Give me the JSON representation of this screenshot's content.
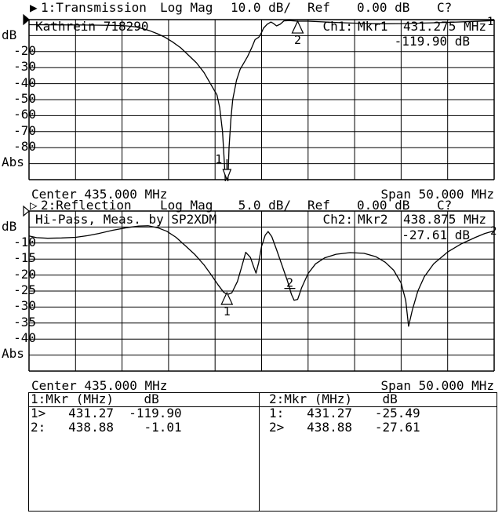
{
  "colors": {
    "fg": "#000000",
    "bg": "#ffffff"
  },
  "channel1": {
    "header": {
      "pointer_icon": "▶",
      "label": "1:Transmission",
      "format": "Log Mag",
      "scale": "10.0 dB/",
      "ref_label": "Ref",
      "ref_value": "0.00 dB",
      "status": "C?"
    },
    "title": "Kathrein 718290",
    "readout": {
      "ch_label": "Ch1:",
      "mkr_label": "Mkr1",
      "freq": "431.275 MHz",
      "value": "-119.90 dB"
    },
    "trace_number": "1",
    "axis": {
      "unit": "dB",
      "labels": [
        "-20",
        "-30",
        "-40",
        "-50",
        "-60",
        "-70",
        "-80"
      ],
      "bottom_label": "Abs"
    },
    "footer": {
      "center": "Center 435.000 MHz",
      "span": "Span 50.000 MHz"
    }
  },
  "channel2": {
    "header": {
      "pointer_icon": "▷",
      "label": "2:Reflection",
      "format": "Log Mag",
      "scale": "5.0 dB/",
      "ref_label": "Ref",
      "ref_value": "0.00 dB",
      "status": "C?"
    },
    "title": "Hi-Pass, Meas. by SP2XDM",
    "readout": {
      "ch_label": "Ch2:",
      "mkr_label": "Mkr2",
      "freq": "438.875 MHz",
      "value": "-27.61 dB"
    },
    "trace_number": "2",
    "axis": {
      "unit": "dB",
      "labels": [
        "-10",
        "-15",
        "-20",
        "-25",
        "-30",
        "-35",
        "-40"
      ],
      "bottom_label": "Abs"
    },
    "footer": {
      "center": "Center 435.000 MHz",
      "span": "Span 50.000 MHz"
    }
  },
  "marker_table": {
    "left": {
      "header_col1": "1:Mkr (MHz)",
      "header_col2": "dB",
      "rows": [
        {
          "tag": "1>",
          "freq": "431.27",
          "db": "-119.90"
        },
        {
          "tag": "2:",
          "freq": "438.88",
          "db": "-1.01"
        }
      ]
    },
    "right": {
      "header_col1": "2:Mkr (MHz)",
      "header_col2": "dB",
      "rows": [
        {
          "tag": "1:",
          "freq": "431.27",
          "db": "-25.49"
        },
        {
          "tag": "2>",
          "freq": "438.88",
          "db": "-27.61"
        }
      ]
    }
  },
  "chart_data": [
    {
      "type": "line",
      "title": "1:Transmission",
      "format": "Log Mag",
      "scale_db_per_div": 10,
      "ref_db": 0,
      "x_center_mhz": 435.0,
      "x_span_mhz": 50.0,
      "x_range_mhz": [
        410,
        460
      ],
      "y_range_db": [
        -100,
        0
      ],
      "grid": {
        "cols": 10,
        "rows": 10
      },
      "points_mhz_db": [
        [
          410,
          -3.2
        ],
        [
          413,
          -3.3
        ],
        [
          416,
          -3.4
        ],
        [
          419,
          -3.6
        ],
        [
          420.5,
          -3.9
        ],
        [
          421.5,
          -4.6
        ],
        [
          422.3,
          -5.8
        ],
        [
          423,
          -7
        ],
        [
          423.8,
          -8.8
        ],
        [
          424.6,
          -11
        ],
        [
          425.4,
          -13.8
        ],
        [
          426.3,
          -17.6
        ],
        [
          427.1,
          -22
        ],
        [
          428,
          -27
        ],
        [
          428.8,
          -33
        ],
        [
          429.4,
          -39
        ],
        [
          429.9,
          -44
        ],
        [
          430.2,
          -47
        ],
        [
          430.5,
          -55
        ],
        [
          430.8,
          -70
        ],
        [
          431,
          -90
        ],
        [
          431.275,
          -119.9
        ],
        [
          431.5,
          -80
        ],
        [
          431.7,
          -62
        ],
        [
          431.9,
          -50
        ],
        [
          432.3,
          -38
        ],
        [
          432.7,
          -31
        ],
        [
          433.1,
          -27
        ],
        [
          433.5,
          -23
        ],
        [
          433.9,
          -18
        ],
        [
          434.3,
          -12.5
        ],
        [
          434.7,
          -11
        ],
        [
          435,
          -8
        ],
        [
          435.2,
          -5.4
        ],
        [
          435.6,
          -2.9
        ],
        [
          436,
          -1.5
        ],
        [
          436.3,
          -2.5
        ],
        [
          436.6,
          -3.9
        ],
        [
          437,
          -2.9
        ],
        [
          437.4,
          -0.8
        ],
        [
          438,
          -0.6
        ],
        [
          438.875,
          -1.0
        ],
        [
          440,
          -1.0
        ],
        [
          442,
          -1.5
        ],
        [
          444,
          -2.0
        ],
        [
          446,
          -2.4
        ],
        [
          448,
          -2.6
        ],
        [
          450,
          -2.5
        ],
        [
          452,
          -2.2
        ],
        [
          454,
          -1.9
        ],
        [
          456,
          -1.5
        ],
        [
          458,
          -1.1
        ],
        [
          460,
          -0.6
        ]
      ],
      "markers": [
        {
          "n": "1",
          "f_mhz": 431.275,
          "db": -119.9,
          "style": "below-scale-arrow"
        },
        {
          "n": "2",
          "f_mhz": 438.875,
          "db": -1.01,
          "style": "triangle-up"
        }
      ]
    },
    {
      "type": "line",
      "title": "2:Reflection",
      "format": "Log Mag",
      "scale_db_per_div": 5,
      "ref_db": 0,
      "x_center_mhz": 435.0,
      "x_span_mhz": 50.0,
      "x_range_mhz": [
        410,
        460
      ],
      "y_range_db": [
        -50,
        0
      ],
      "grid": {
        "cols": 10,
        "rows": 10
      },
      "points_mhz_db": [
        [
          410,
          -7.8
        ],
        [
          410.8,
          -8.3
        ],
        [
          412,
          -8.5
        ],
        [
          413.5,
          -8.4
        ],
        [
          415,
          -8.2
        ],
        [
          416.3,
          -7.7
        ],
        [
          417.5,
          -7
        ],
        [
          419,
          -6
        ],
        [
          420.5,
          -5.2
        ],
        [
          421.8,
          -4.7
        ],
        [
          422.8,
          -4.6
        ],
        [
          423.8,
          -5.2
        ],
        [
          424.8,
          -6.3
        ],
        [
          425.8,
          -8.2
        ],
        [
          426.8,
          -10.8
        ],
        [
          427.8,
          -13.5
        ],
        [
          428.8,
          -16.8
        ],
        [
          429.6,
          -20
        ],
        [
          430.3,
          -23
        ],
        [
          430.9,
          -25.3
        ],
        [
          431.3,
          -26.1
        ],
        [
          431.8,
          -25.6
        ],
        [
          432.4,
          -22
        ],
        [
          432.9,
          -17
        ],
        [
          433.3,
          -12.9
        ],
        [
          433.8,
          -14.5
        ],
        [
          434.1,
          -17
        ],
        [
          434.4,
          -19.4
        ],
        [
          434.7,
          -16
        ],
        [
          435,
          -11
        ],
        [
          435.4,
          -7.5
        ],
        [
          435.7,
          -6.4
        ],
        [
          436.1,
          -8
        ],
        [
          436.6,
          -12
        ],
        [
          437.2,
          -17
        ],
        [
          437.8,
          -22
        ],
        [
          438.2,
          -26
        ],
        [
          438.5,
          -27.9
        ],
        [
          438.875,
          -27.6
        ],
        [
          439.3,
          -24
        ],
        [
          440,
          -19.5
        ],
        [
          440.8,
          -16.5
        ],
        [
          441.8,
          -14.6
        ],
        [
          443,
          -13.5
        ],
        [
          444.5,
          -13
        ],
        [
          446,
          -13.2
        ],
        [
          447.3,
          -14.3
        ],
        [
          448.3,
          -16
        ],
        [
          449.2,
          -18.5
        ],
        [
          450,
          -22.5
        ],
        [
          450.5,
          -28
        ],
        [
          450.8,
          -36
        ],
        [
          451.2,
          -31
        ],
        [
          451.8,
          -25
        ],
        [
          452.5,
          -20.5
        ],
        [
          453.5,
          -16.5
        ],
        [
          455,
          -12.8
        ],
        [
          456.5,
          -10.2
        ],
        [
          458,
          -8.2
        ],
        [
          459,
          -7
        ],
        [
          460,
          -6.2
        ]
      ],
      "markers": [
        {
          "n": "1",
          "f_mhz": 431.27,
          "db": -25.49,
          "style": "triangle-up"
        },
        {
          "n": "2",
          "f_mhz": 438.875,
          "db": -27.61,
          "style": "underline-label"
        }
      ]
    }
  ]
}
